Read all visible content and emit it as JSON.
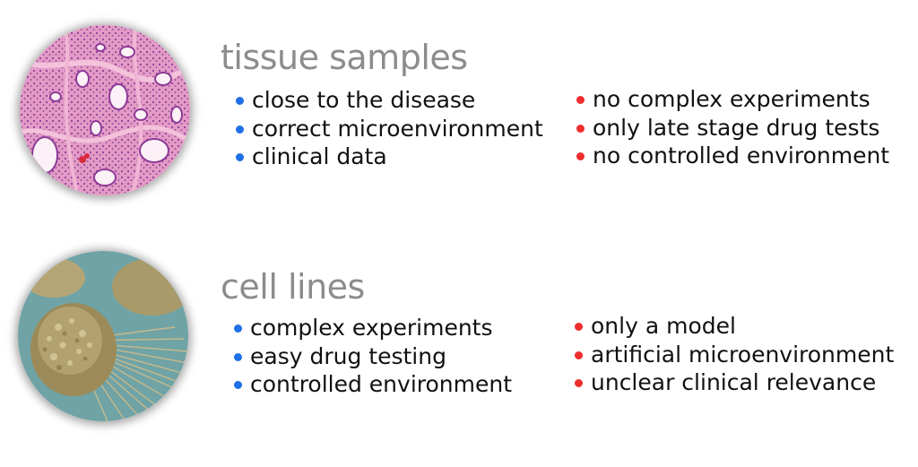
{
  "sections": [
    {
      "title": "tissue samples",
      "image_icon": "histology-tissue-image",
      "pros": [
        "close to the disease",
        "correct microenvironment",
        "clinical data"
      ],
      "cons": [
        "no complex experiments",
        "only late stage drug tests",
        "no controlled environment"
      ]
    },
    {
      "title": "cell lines",
      "image_icon": "cancer-cell-micrograph-image",
      "pros": [
        "complex experiments",
        "easy drug testing",
        "controlled environment"
      ],
      "cons": [
        "only a model",
        "artificial microenvironment",
        "unclear clinical relevance"
      ]
    }
  ],
  "colors": {
    "pro_bullet": "#1f6fe6",
    "con_bullet": "#ee2d2d",
    "heading": "#8c8c8c",
    "text": "#111111"
  }
}
